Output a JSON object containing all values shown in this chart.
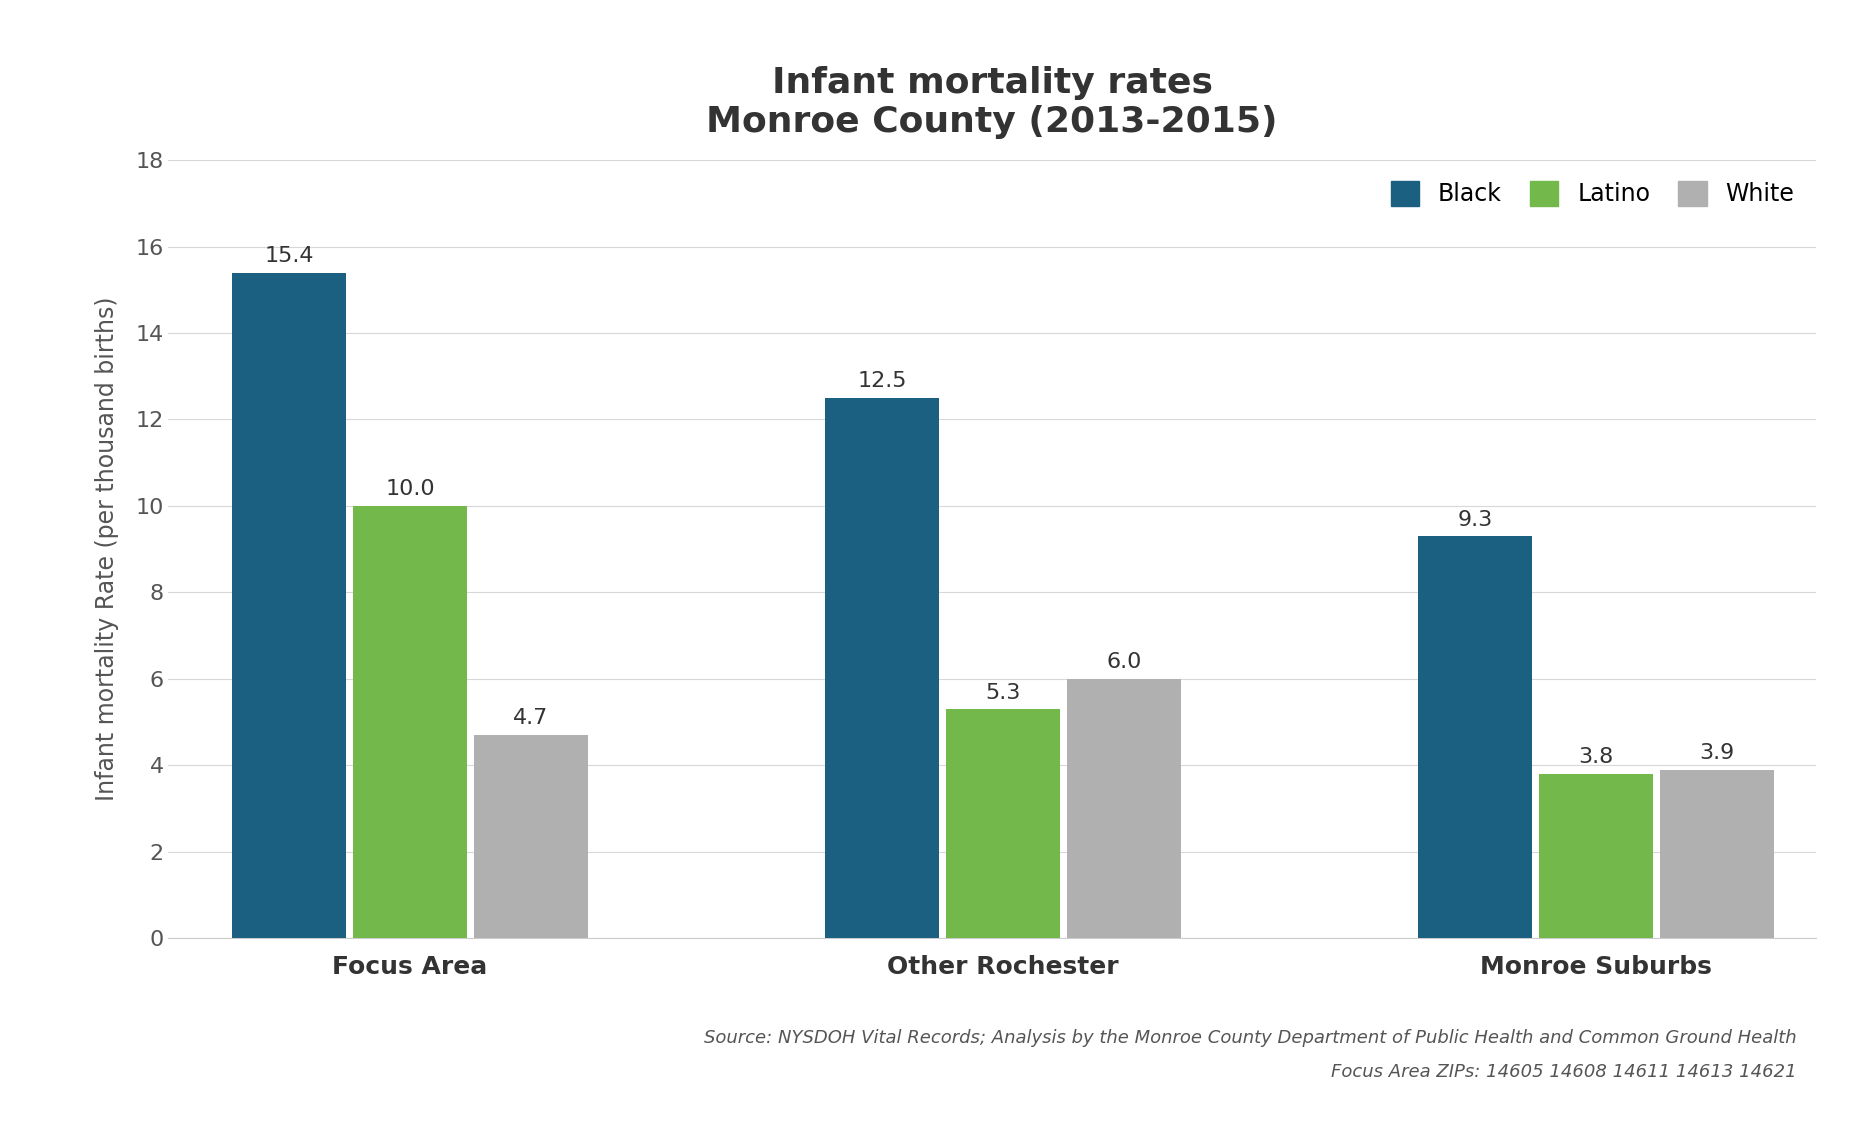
{
  "title_line1": "Infant mortality rates",
  "title_line2": "Monroe County (2013-2015)",
  "categories": [
    "Focus Area",
    "Other Rochester",
    "Monroe Suburbs"
  ],
  "groups": [
    "Black",
    "Latino",
    "White"
  ],
  "values": {
    "Focus Area": [
      15.4,
      10.0,
      4.7
    ],
    "Other Rochester": [
      12.5,
      5.3,
      6.0
    ],
    "Monroe Suburbs": [
      9.3,
      3.8,
      3.9
    ]
  },
  "bar_colors": [
    "#1b6080",
    "#72b84a",
    "#b0b0b0"
  ],
  "ylim": [
    0,
    18
  ],
  "yticks": [
    0,
    2,
    4,
    6,
    8,
    10,
    12,
    14,
    16,
    18
  ],
  "ylabel": "Infant mortality Rate (per thousand births)",
  "source_text1": "Source: NYSDOH Vital Records; Analysis by the Monroe County Department of Public Health and Common Ground Health",
  "source_text2": "Focus Area ZIPs: 14605 14608 14611 14613 14621",
  "background_color": "#ffffff",
  "grid_color": "#d8d8d8",
  "title_fontsize": 26,
  "label_fontsize": 17,
  "tick_fontsize": 16,
  "xtick_fontsize": 18,
  "bar_label_fontsize": 16,
  "legend_fontsize": 17,
  "source_fontsize": 13
}
